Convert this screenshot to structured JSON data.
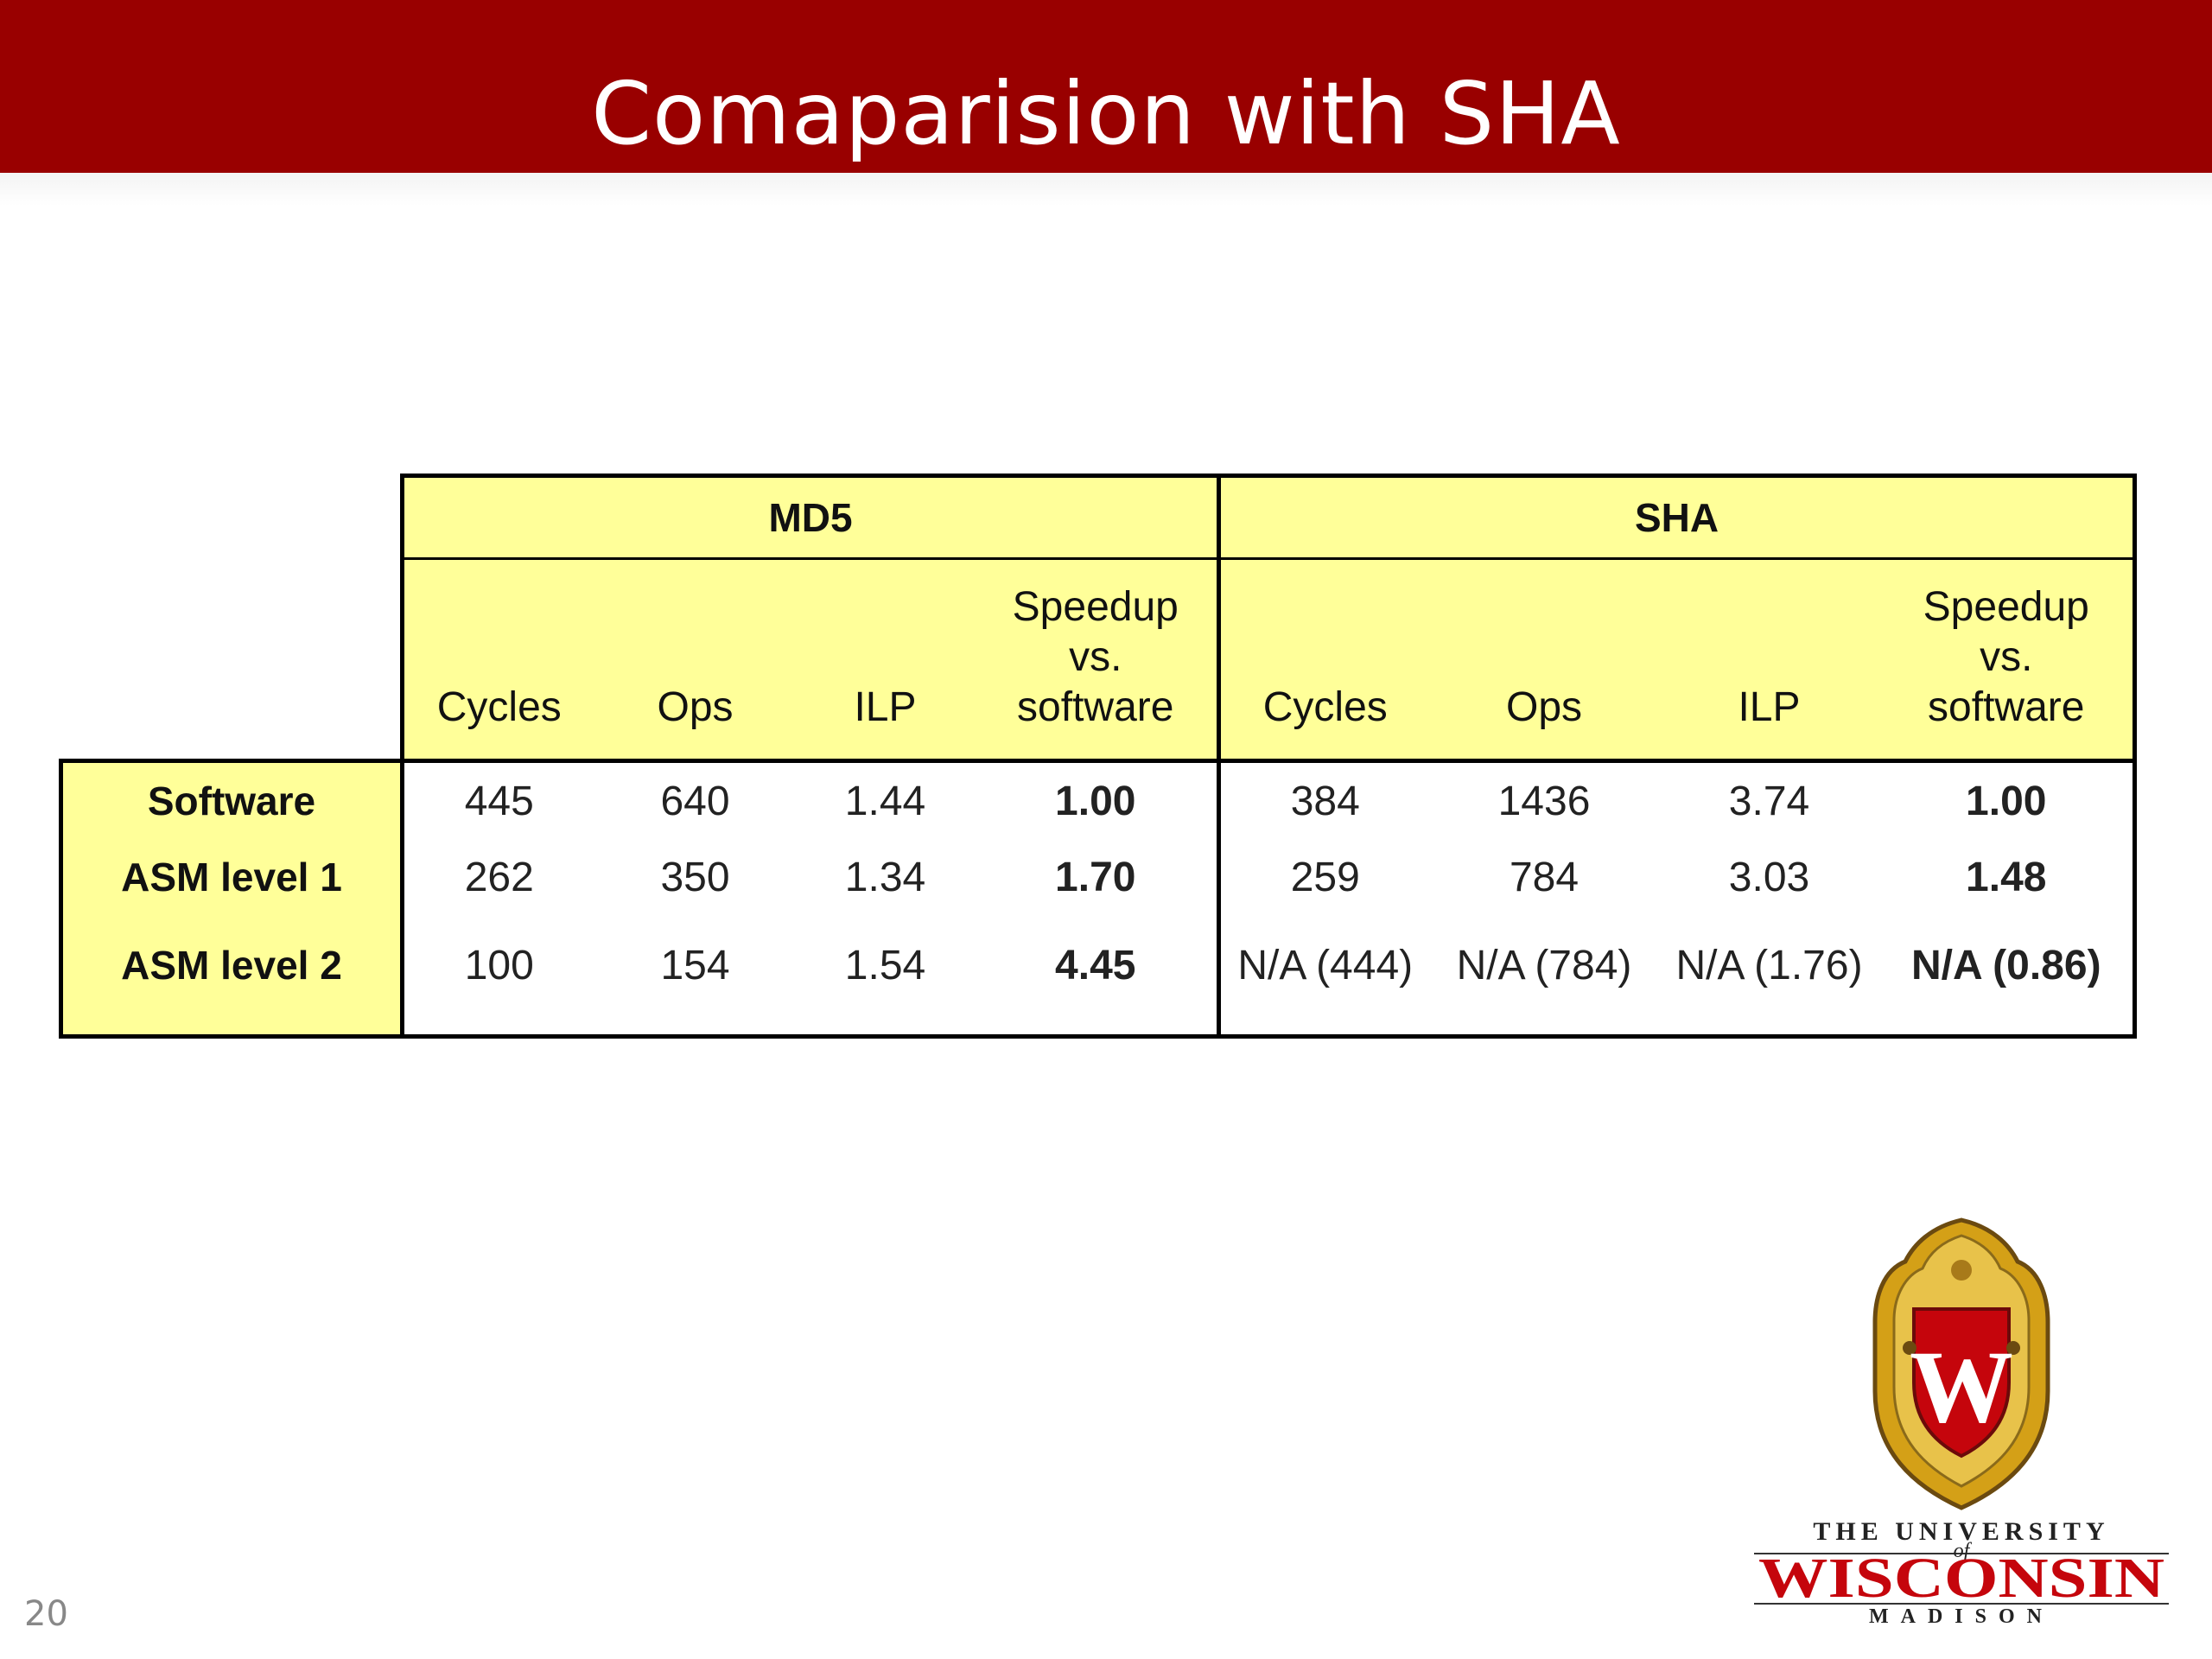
{
  "slide": {
    "title": "Comaparision with SHA",
    "number": "20"
  },
  "table": {
    "groups": [
      "MD5",
      "SHA"
    ],
    "columns": [
      "Cycles",
      "Ops",
      "ILP",
      "Speedup\nvs.\nsoftware",
      "Cycles",
      "Ops",
      "ILP",
      "Speedup\nvs.\nsoftware"
    ],
    "rows": [
      {
        "label": "Software",
        "cells": [
          "445",
          "640",
          "1.44",
          "1.00",
          "384",
          "1436",
          "3.74",
          "1.00"
        ]
      },
      {
        "label": "ASM level 1",
        "cells": [
          "262",
          "350",
          "1.34",
          "1.70",
          "259",
          "784",
          "3.03",
          "1.48"
        ]
      },
      {
        "label": "ASM level 2",
        "cells": [
          "100",
          "154",
          "1.54",
          "4.45",
          "N/A (444)",
          "N/A (784)",
          "N/A (1.76)",
          "N/A (0.86)"
        ]
      }
    ]
  },
  "logo": {
    "crest_letter": "W",
    "line1": "THE UNIVERSITY",
    "of": "of",
    "line2": "WISCONSIN",
    "line3": "MADISON",
    "colors": {
      "red": "#c5050c",
      "gold": "#d4a017"
    }
  },
  "colors": {
    "title_bar": "#990000",
    "title_rule": "#d9a441",
    "table_header": "#ffff99"
  }
}
